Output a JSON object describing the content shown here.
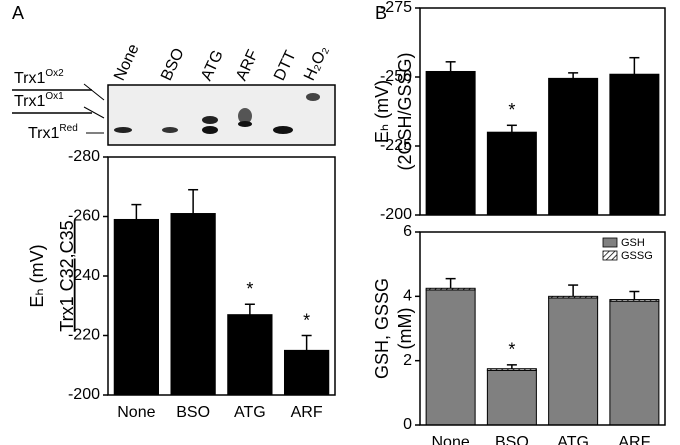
{
  "panels": [
    "A",
    "B"
  ],
  "blot": {
    "lanes": [
      "None",
      "BSO",
      "ATG",
      "ARF",
      "DTT",
      "H₂O₂"
    ],
    "labels": [
      {
        "text": "Trx1",
        "superscript": "Ox2"
      },
      {
        "text": "Trx1",
        "superscript": "Ox1"
      },
      {
        "text": "Trx1",
        "superscript": "Red"
      }
    ]
  },
  "chart_data": [
    {
      "type": "bar",
      "ylabel": [
        "Eₕ (mV)",
        "Trx1 C32,C35"
      ],
      "categories": [
        "None",
        "BSO",
        "ATG",
        "ARF"
      ],
      "series": [
        {
          "name": "Trx1",
          "color": "#000000",
          "values": [
            -259,
            -261,
            -227,
            -215
          ],
          "errors": [
            5,
            8,
            3.5,
            5
          ]
        }
      ],
      "ylim": [
        -200,
        -280
      ],
      "yticks": [
        -280,
        -260,
        -240,
        -220,
        -200
      ],
      "annotations": [
        {
          "text": "*",
          "category": 2
        },
        {
          "text": "*",
          "category": 3
        }
      ]
    },
    {
      "type": "bar",
      "ylabel": [
        "Eₕ (mV)",
        "(2GSH/GSSG)"
      ],
      "categories": [
        null,
        null,
        null,
        null
      ],
      "series": [
        {
          "name": "GSH/GSSG",
          "color": "#000000",
          "values": [
            -252,
            -230,
            -249.5,
            -251
          ],
          "errors": [
            3.5,
            2.5,
            2,
            6
          ]
        }
      ],
      "ylim": [
        -200,
        -275
      ],
      "yticks": [
        -275,
        -250,
        -225,
        -200
      ],
      "annotations": [
        {
          "text": "*",
          "category": 1
        }
      ]
    },
    {
      "type": "bar",
      "stacked": true,
      "ylabel": [
        "GSH, GSSG",
        "(mM)"
      ],
      "categories": [
        "None",
        "BSO",
        "ATG",
        "ARF"
      ],
      "series": [
        {
          "name": "GSH",
          "color": "#808080",
          "values": [
            4.2,
            1.7,
            3.95,
            3.85
          ],
          "errors": [
            0.35,
            0.17,
            0.4,
            0.3
          ]
        },
        {
          "name": "GSSG",
          "color": "hatch",
          "values": [
            0.05,
            0.05,
            0.05,
            0.05
          ]
        }
      ],
      "ylim": [
        0,
        6
      ],
      "yticks": [
        0,
        2,
        4,
        6
      ],
      "legend": "top-right",
      "annotations": [
        {
          "text": "*",
          "category": 1
        }
      ]
    }
  ]
}
